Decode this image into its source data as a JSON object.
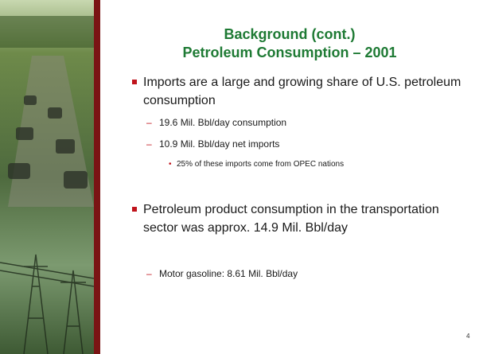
{
  "slide": {
    "title": [
      "Background (cont.)",
      "Petroleum Consumption – 2001"
    ],
    "bullets": [
      {
        "text": "Imports are a large and growing share of U.S. petroleum consumption",
        "sub": [
          {
            "text": "19.6 Mil. Bbl/day consumption"
          },
          {
            "text": "10.9 Mil. Bbl/day net imports",
            "sub": [
              "25% of these imports come from OPEC nations"
            ]
          }
        ]
      },
      {
        "text": "Petroleum product consumption in the transportation sector was approx. 14.9 Mil. Bbl/day",
        "sub": [
          {
            "text": "Motor gasoline:  8.61 Mil. Bbl/day"
          }
        ]
      }
    ],
    "page_number": 4
  }
}
